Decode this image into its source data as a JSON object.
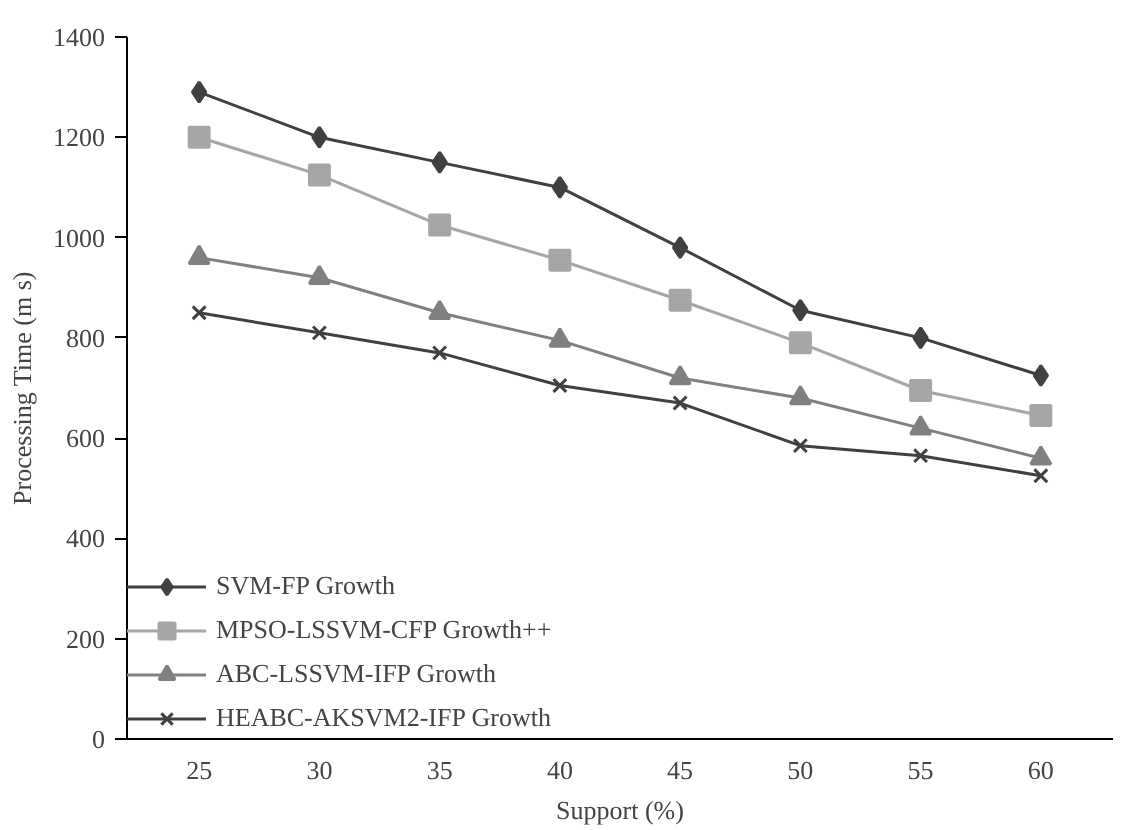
{
  "chart_data": {
    "type": "line",
    "xlabel": "Support (%)",
    "ylabel": "Processing Time (m s)",
    "categories": [
      "25",
      "30",
      "35",
      "40",
      "45",
      "50",
      "55",
      "60"
    ],
    "ylim": [
      0,
      1400
    ],
    "yticks": [
      0,
      200,
      400,
      600,
      800,
      1000,
      1200,
      1400
    ],
    "grid": false,
    "legend": "bottom left",
    "line_style": "solid",
    "series": [
      {
        "name": "SVM-FP Growth",
        "color": "#404040",
        "marker": "diamond",
        "values": [
          1290,
          1200,
          1150,
          1100,
          980,
          855,
          800,
          725
        ]
      },
      {
        "name": "MPSO-LSSVM-CFP Growth++",
        "color": "#a6a6a6",
        "marker": "square",
        "values": [
          1200,
          1125,
          1025,
          955,
          875,
          790,
          695,
          645
        ]
      },
      {
        "name": "ABC-LSSVM-IFP Growth",
        "color": "#808080",
        "marker": "triangle",
        "values": [
          960,
          920,
          850,
          795,
          720,
          680,
          620,
          560
        ]
      },
      {
        "name": "HEABC-AKSVM2-IFP Growth",
        "color": "#404040",
        "marker": "cross",
        "values": [
          850,
          810,
          770,
          705,
          670,
          585,
          565,
          525
        ]
      }
    ]
  }
}
